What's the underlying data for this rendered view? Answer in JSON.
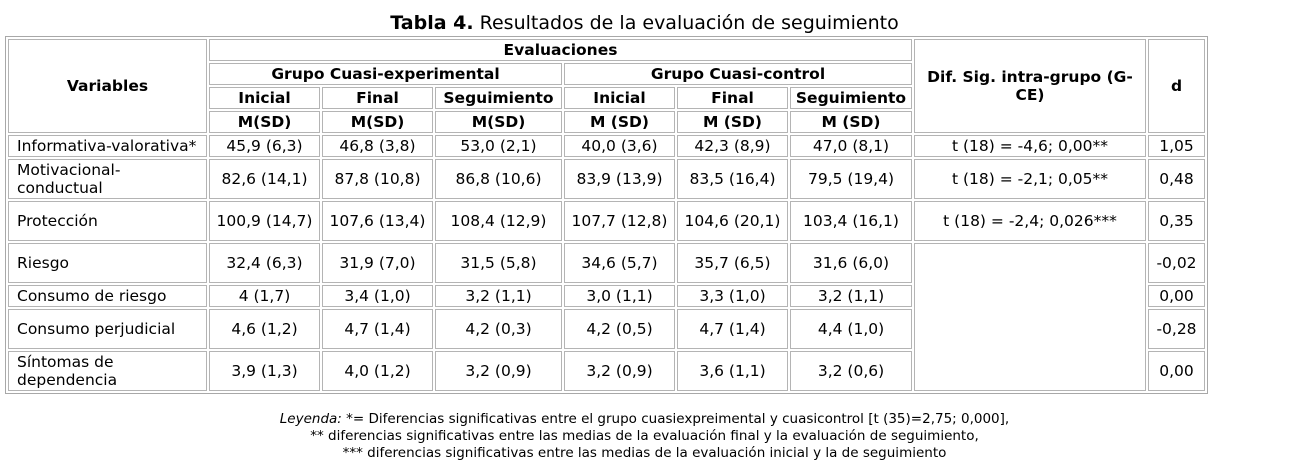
{
  "title": {
    "bold": "Tabla 4.",
    "rest": " Resultados de la evaluación de seguimiento"
  },
  "header": {
    "variables": "Variables",
    "evaluaciones": "Evaluaciones",
    "grupo_exp": "Grupo Cuasi-experimental",
    "grupo_ctrl": "Grupo Cuasi-control",
    "dif": "Dif. Sig. intra-grupo (G-CE)",
    "d": "d",
    "phases": [
      "Inicial",
      "Final",
      "Seguimiento",
      "Inicial",
      "Final",
      "Seguimiento"
    ],
    "stats": [
      "M(SD)",
      "M(SD)",
      "M(SD)",
      "M (SD)",
      "M (SD)",
      "M (SD)"
    ]
  },
  "rows": [
    {
      "variable": "Informativa-valorativa*",
      "values": [
        "45,9 (6,3)",
        "46,8 (3,8)",
        "53,0 (2,1)",
        "40,0 (3,6)",
        "42,3 (8,9)",
        "47,0 (8,1)"
      ],
      "dif": "t (18) = -4,6; 0,00**",
      "d": "1,05"
    },
    {
      "variable": "Motivacional-conductual",
      "values": [
        "82,6 (14,1)",
        "87,8 (10,8)",
        "86,8 (10,6)",
        "83,9 (13,9)",
        "83,5 (16,4)",
        "79,5 (19,4)"
      ],
      "dif": "t (18) = -2,1; 0,05**",
      "d": "0,48"
    },
    {
      "variable": "Protección",
      "values": [
        "100,9 (14,7)",
        "107,6 (13,4)",
        "108,4 (12,9)",
        "107,7 (12,8)",
        "104,6 (20,1)",
        "103,4 (16,1)"
      ],
      "dif": "t (18) = -2,4; 0,026***",
      "d": "0,35"
    },
    {
      "variable": "Riesgo",
      "values": [
        "32,4 (6,3)",
        "31,9 (7,0)",
        "31,5 (5,8)",
        "34,6 (5,7)",
        "35,7 (6,5)",
        "31,6 (6,0)"
      ],
      "dif": "",
      "d": "-0,02"
    },
    {
      "variable": "Consumo de riesgo",
      "values": [
        "4 (1,7)",
        "3,4 (1,0)",
        "3,2 (1,1)",
        "3,0 (1,1)",
        "3,3 (1,0)",
        "3,2 (1,1)"
      ],
      "dif": "",
      "d": "0,00"
    },
    {
      "variable": "Consumo perjudicial",
      "values": [
        "4,6 (1,2)",
        "4,7 (1,4)",
        "4,2 (0,3)",
        "4,2 (0,5)",
        "4,7 (1,4)",
        "4,4 (1,0)"
      ],
      "dif": "",
      "d": "-0,28"
    },
    {
      "variable": "Síntomas de dependencia",
      "values": [
        "3,9 (1,3)",
        "4,0 (1,2)",
        "3,2 (0,9)",
        "3,2 (0,9)",
        "3,6 (1,1)",
        "3,2 (0,6)"
      ],
      "dif": "",
      "d": "0,00"
    }
  ],
  "legend": {
    "label": "Leyenda:",
    "line1": " *= Diferencias significativas entre el grupo cuasiexpreimental y cuasicontrol [t (35)=2,75; 0,000],",
    "line2": "** diferencias significativas entre las medias de la evaluación final y la evaluación de seguimiento,",
    "line3": "*** diferencias significativas entre las medias de la evaluación inicial y la de seguimiento"
  }
}
